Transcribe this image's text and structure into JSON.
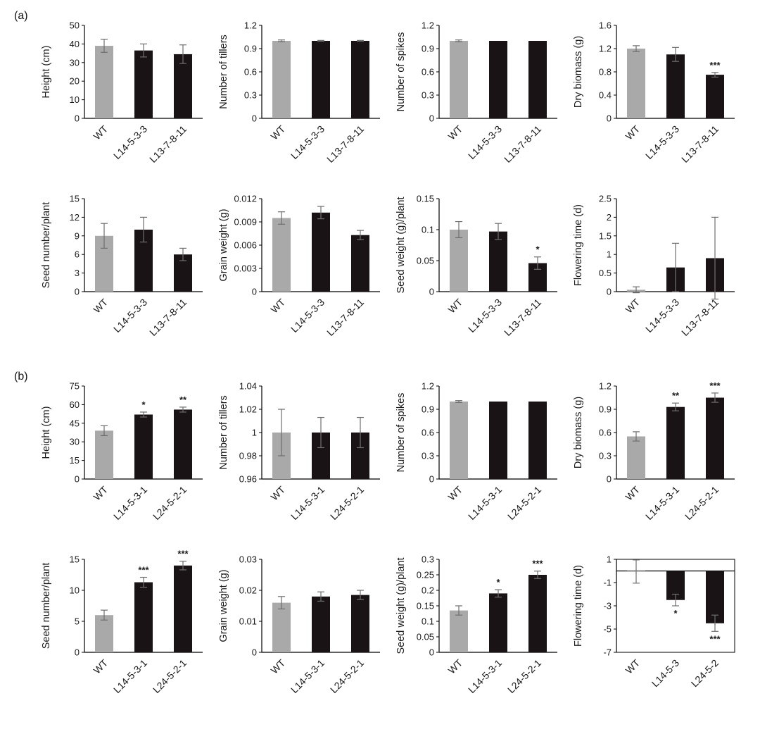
{
  "figure": {
    "panel_a_label": "(a)",
    "panel_b_label": "(b)"
  },
  "colors": {
    "wt_bar": "#a9a9a9",
    "mutant_bar": "#1a1315",
    "error_bar": "#6e6e6e",
    "axis": "#000000",
    "text": "#1a1a1a"
  },
  "chart_data": [
    {
      "panel": "a",
      "type": "bar",
      "ylabel": "Height (cm)",
      "categories": [
        "WT",
        "L14-5-3-3",
        "L13-7-8-11"
      ],
      "values": [
        39,
        36.5,
        34.5
      ],
      "errors": [
        3.5,
        3.5,
        5
      ],
      "sig": [
        "",
        "",
        ""
      ],
      "ylim": [
        0,
        50
      ],
      "yticks": [
        "0",
        "10",
        "20",
        "30",
        "40",
        "50"
      ],
      "legend": "none",
      "grid": false
    },
    {
      "panel": "a",
      "type": "bar",
      "ylabel": "Number of tillers",
      "categories": [
        "WT",
        "L14-5-3-3",
        "L13-7-8-11"
      ],
      "values": [
        1,
        1,
        1
      ],
      "errors": [
        0.012,
        0.006,
        0.006
      ],
      "sig": [
        "",
        "",
        ""
      ],
      "ylim": [
        0,
        1.2
      ],
      "yticks": [
        "0",
        "0.3",
        "0.6",
        "0.9",
        "1.2"
      ],
      "legend": "none",
      "grid": false
    },
    {
      "panel": "a",
      "type": "bar",
      "ylabel": "Number of spikes",
      "categories": [
        "WT",
        "L14-5-3-3",
        "L13-7-8-11"
      ],
      "values": [
        1,
        1,
        1
      ],
      "errors": [
        0.012,
        0,
        0
      ],
      "sig": [
        "",
        "",
        ""
      ],
      "ylim": [
        0,
        1.2
      ],
      "yticks": [
        "0",
        "0.3",
        "0.6",
        "0.9",
        "1.2"
      ],
      "legend": "none",
      "grid": false
    },
    {
      "panel": "a",
      "type": "bar",
      "ylabel": "Dry biomass (g)",
      "categories": [
        "WT",
        "L14-5-3-3",
        "L13-7-8-11"
      ],
      "values": [
        1.2,
        1.1,
        0.75
      ],
      "errors": [
        0.05,
        0.12,
        0.04
      ],
      "sig": [
        "",
        "",
        "***"
      ],
      "ylim": [
        0,
        1.6
      ],
      "yticks": [
        "0",
        "0.4",
        "0.8",
        "1.2",
        "1.6"
      ],
      "legend": "none",
      "grid": false
    },
    {
      "panel": "a",
      "type": "bar",
      "ylabel": "Seed number/plant",
      "categories": [
        "WT",
        "L14-5-3-3",
        "L13-7-8-11"
      ],
      "values": [
        9,
        10,
        6
      ],
      "errors": [
        2,
        2,
        1
      ],
      "sig": [
        "",
        "",
        ""
      ],
      "ylim": [
        0,
        15
      ],
      "yticks": [
        "0",
        "3",
        "6",
        "9",
        "12",
        "15"
      ],
      "legend": "none",
      "grid": false
    },
    {
      "panel": "a",
      "type": "bar",
      "ylabel": "Grain weight (g)",
      "categories": [
        "WT",
        "L14-5-3-3",
        "L13-7-8-11"
      ],
      "values": [
        0.0095,
        0.0102,
        0.0073
      ],
      "errors": [
        0.0008,
        0.0008,
        0.0006
      ],
      "sig": [
        "",
        "",
        ""
      ],
      "ylim": [
        0,
        0.012
      ],
      "yticks": [
        "0",
        "0.003",
        "0.006",
        "0.009",
        "0.012"
      ],
      "legend": "none",
      "grid": false
    },
    {
      "panel": "a",
      "type": "bar",
      "ylabel": "Seed weight (g)/plant",
      "categories": [
        "WT",
        "L14-5-3-3",
        "L13-7-8-11"
      ],
      "values": [
        0.1,
        0.097,
        0.046
      ],
      "errors": [
        0.013,
        0.013,
        0.01
      ],
      "sig": [
        "",
        "",
        "*"
      ],
      "ylim": [
        0,
        0.15
      ],
      "yticks": [
        "0",
        "0.05",
        "0.1",
        "0.15"
      ],
      "legend": "none",
      "grid": false
    },
    {
      "panel": "a",
      "type": "bar",
      "ylabel": "Flowering time (d)",
      "categories": [
        "WT",
        "L14-5-3-3",
        "L13-7-8-11"
      ],
      "values": [
        0.05,
        0.65,
        0.9
      ],
      "errors": [
        0.08,
        0.65,
        1.1
      ],
      "sig": [
        "",
        "",
        ""
      ],
      "ylim": [
        0,
        2.5
      ],
      "yticks": [
        "0",
        "0.5",
        "1",
        "1.5",
        "2",
        "2.5"
      ],
      "legend": "none",
      "grid": false
    },
    {
      "panel": "b",
      "type": "bar",
      "ylabel": "Height (cm)",
      "categories": [
        "WT",
        "L14-5-3-1",
        "L24-5-2-1"
      ],
      "values": [
        39,
        52,
        56
      ],
      "errors": [
        4,
        2,
        2
      ],
      "sig": [
        "",
        "*",
        "**"
      ],
      "ylim": [
        0,
        75
      ],
      "yticks": [
        "0",
        "15",
        "30",
        "45",
        "60",
        "75"
      ],
      "legend": "none",
      "grid": false
    },
    {
      "panel": "b",
      "type": "bar",
      "ylabel": "Number of tillers",
      "categories": [
        "WT",
        "L14-5-3-1",
        "L24-5-2-1"
      ],
      "values": [
        1,
        1,
        1
      ],
      "errors": [
        0.02,
        0.013,
        0.013
      ],
      "sig": [
        "",
        "",
        ""
      ],
      "ylim": [
        0.96,
        1.04
      ],
      "yticks": [
        "0.96",
        "0.98",
        "1",
        "1.02",
        "1.04"
      ],
      "legend": "none",
      "grid": false
    },
    {
      "panel": "b",
      "type": "bar",
      "ylabel": "Number of spikes",
      "categories": [
        "WT",
        "L14-5-3-1",
        "L24-5-2-1"
      ],
      "values": [
        1,
        1,
        1
      ],
      "errors": [
        0.012,
        0,
        0
      ],
      "sig": [
        "",
        "",
        ""
      ],
      "ylim": [
        0,
        1.2
      ],
      "yticks": [
        "0",
        "0.3",
        "0.6",
        "0.9",
        "1.2"
      ],
      "legend": "none",
      "grid": false
    },
    {
      "panel": "b",
      "type": "bar",
      "ylabel": "Dry biomass (g)",
      "categories": [
        "WT",
        "L14-5-3-1",
        "L24-5-2-1"
      ],
      "values": [
        0.55,
        0.93,
        1.05
      ],
      "errors": [
        0.06,
        0.05,
        0.06
      ],
      "sig": [
        "",
        "**",
        "***"
      ],
      "ylim": [
        0,
        1.2
      ],
      "yticks": [
        "0",
        "0.3",
        "0.6",
        "0.9",
        "1.2"
      ],
      "legend": "none",
      "grid": false
    },
    {
      "panel": "b",
      "type": "bar",
      "ylabel": "Seed number/plant",
      "categories": [
        "WT",
        "L14-5-3-1",
        "L24-5-2-1"
      ],
      "values": [
        6,
        11.3,
        14
      ],
      "errors": [
        0.8,
        0.8,
        0.7
      ],
      "sig": [
        "",
        "***",
        "***"
      ],
      "ylim": [
        0,
        15
      ],
      "yticks": [
        "0",
        "5",
        "10",
        "15"
      ],
      "legend": "none",
      "grid": false
    },
    {
      "panel": "b",
      "type": "bar",
      "ylabel": "Grain weight (g)",
      "categories": [
        "WT",
        "L14-5-3-1",
        "L24-5-2-1"
      ],
      "values": [
        0.016,
        0.018,
        0.0185
      ],
      "errors": [
        0.002,
        0.0015,
        0.0015
      ],
      "sig": [
        "",
        "",
        ""
      ],
      "ylim": [
        0,
        0.03
      ],
      "yticks": [
        "0",
        "0.01",
        "0.02",
        "0.03"
      ],
      "legend": "none",
      "grid": false
    },
    {
      "panel": "b",
      "type": "bar",
      "ylabel": "Seed weight (g)/plant",
      "categories": [
        "WT",
        "L14-5-3-1",
        "L24-5-2-1"
      ],
      "values": [
        0.135,
        0.19,
        0.25
      ],
      "errors": [
        0.015,
        0.012,
        0.012
      ],
      "sig": [
        "",
        "*",
        "***"
      ],
      "ylim": [
        0,
        0.3
      ],
      "yticks": [
        "0",
        "0.05",
        "0.1",
        "0.15",
        "0.2",
        "0.25",
        "0.3"
      ],
      "legend": "none",
      "grid": false
    },
    {
      "panel": "b",
      "type": "bar",
      "ylabel": "Flowering time (d)",
      "categories": [
        "WT",
        "L14-5-3",
        "L24-5-2"
      ],
      "values": [
        -0.05,
        -2.5,
        -4.5
      ],
      "errors": [
        1,
        0.5,
        0.7
      ],
      "sig": [
        "",
        "*",
        "***"
      ],
      "ylim": [
        -7,
        1
      ],
      "yticks": [
        "1",
        "-1",
        "-3",
        "-5",
        "-7"
      ],
      "legend": "none",
      "grid": false,
      "border": true
    }
  ]
}
